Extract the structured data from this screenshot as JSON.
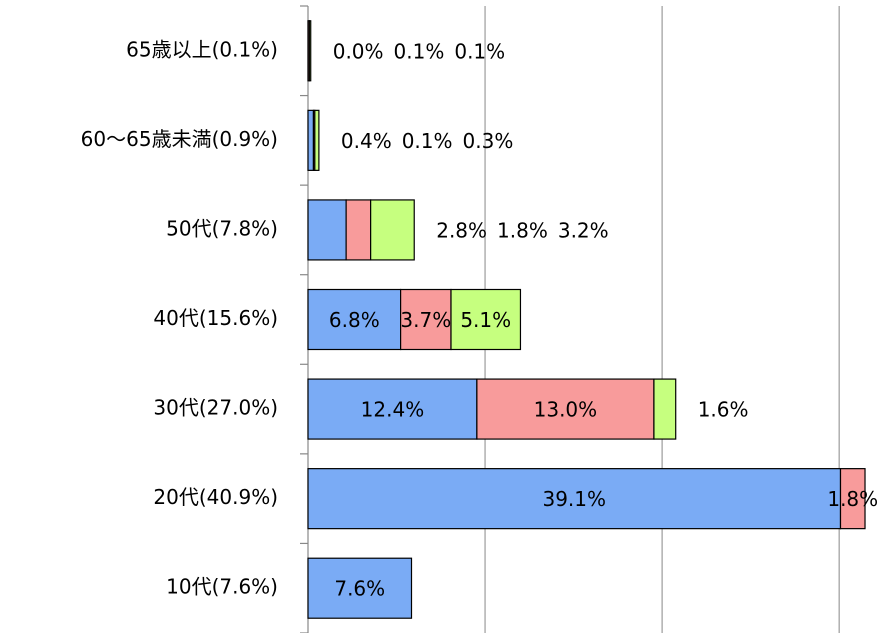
{
  "chart_data": {
    "type": "stacked-bar-horizontal",
    "categories": [
      "65歳以上(0.1%)",
      "60～65歳未満(0.9%)",
      "50代(7.8%)",
      "40代(15.6%)",
      "30代(27.0%)",
      "20代(40.9%)",
      "10代(7.6%)"
    ],
    "series": [
      {
        "color": "#7aabf5",
        "values": [
          0.0,
          0.4,
          2.8,
          6.8,
          12.4,
          39.1,
          7.6
        ],
        "value_labels": [
          "0.0%",
          "0.4%",
          "2.8%",
          "6.8%",
          "12.4%",
          "39.1%",
          "7.6%"
        ]
      },
      {
        "color": "#f89b9b",
        "values": [
          0.1,
          0.1,
          1.8,
          3.7,
          13.0,
          1.8,
          null
        ],
        "value_labels": [
          "0.1%",
          "0.1%",
          "1.8%",
          "3.7%",
          "13.0%",
          "1.8%",
          null
        ]
      },
      {
        "color": "#c6ff7f",
        "values": [
          0.1,
          0.3,
          3.2,
          5.1,
          1.6,
          null,
          null
        ],
        "value_labels": [
          "0.1%",
          "0.3%",
          "3.2%",
          "5.1%",
          "1.6%",
          null,
          null
        ]
      }
    ],
    "xlim": [
      0,
      42
    ],
    "xticks": [
      0,
      13,
      26,
      39
    ],
    "grid": true
  }
}
